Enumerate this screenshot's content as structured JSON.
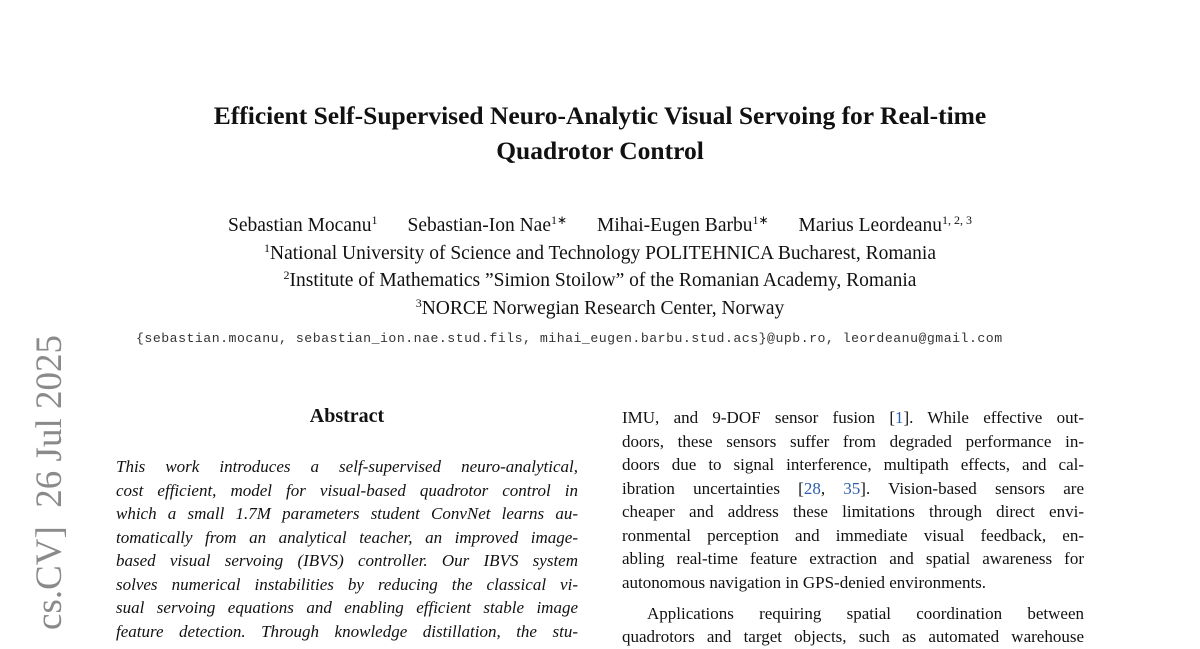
{
  "sidebar": "cs.CV]  26 Jul 2025",
  "header": {
    "title": [
      "Efficient Self-Supervised Neuro-Analytic Visual Servoing for Real-time",
      "Quadrotor Control"
    ],
    "authors": [
      {
        "name": "Sebastian Mocanu",
        "affil": "1"
      },
      {
        "name": "Sebastian-Ion Nae",
        "affil": "1∗"
      },
      {
        "name": "Mihai-Eugen Barbu",
        "affil": "1∗"
      },
      {
        "name": "Marius Leordeanu",
        "affil": "1, 2, 3"
      }
    ],
    "affiliations": [
      {
        "mark": "1",
        "text": "National University of Science and Technology POLITEHNICA Bucharest, Romania"
      },
      {
        "mark": "2",
        "text": "Institute of Mathematics ”Simion Stoilow” of the Romanian Academy, Romania"
      },
      {
        "mark": "3",
        "text": "NORCE Norwegian Research Center, Norway"
      }
    ],
    "emails": "{sebastian.mocanu, sebastian_ion.nae.stud.fils, mihai_eugen.barbu.stud.acs}@upb.ro, leordeanu@gmail.com"
  },
  "abstract": {
    "heading": "Abstract",
    "lines": [
      "This work introduces a self-supervised neuro-analytical,",
      "cost efficient, model for visual-based quadrotor control in",
      "which a small 1.7M parameters student ConvNet learns au-",
      "tomatically from an analytical teacher, an improved image-",
      "based visual servoing (IBVS) controller.  Our IBVS system",
      "solves numerical instabilities by reducing the classical vi-",
      "sual servoing equations and enabling efficient stable image",
      "feature detection.  Through knowledge distillation, the stu-"
    ]
  },
  "body": {
    "paragraphs": [
      {
        "lines": [
          [
            "IMU, and 9-DOF sensor fusion [",
            "1",
            "].  While effective out-"
          ],
          [
            "doors, these sensors suffer from degraded performance in-"
          ],
          [
            "doors due to signal interference, multipath effects, and cal-"
          ],
          [
            "ibration uncertainties [",
            "28",
            ", ",
            "35",
            "].  Vision-based sensors are"
          ],
          [
            "cheaper and address these limitations through direct envi-"
          ],
          [
            "ronmental perception and immediate visual feedback, en-"
          ],
          [
            "abling real-time feature extraction and spatial awareness for"
          ],
          [
            "autonomous navigation in GPS-denied environments."
          ]
        ]
      },
      {
        "lines": [
          [
            "Applications requiring spatial coordination between"
          ],
          [
            "quadrotors and target objects, such as automated warehouse"
          ]
        ]
      }
    ]
  }
}
